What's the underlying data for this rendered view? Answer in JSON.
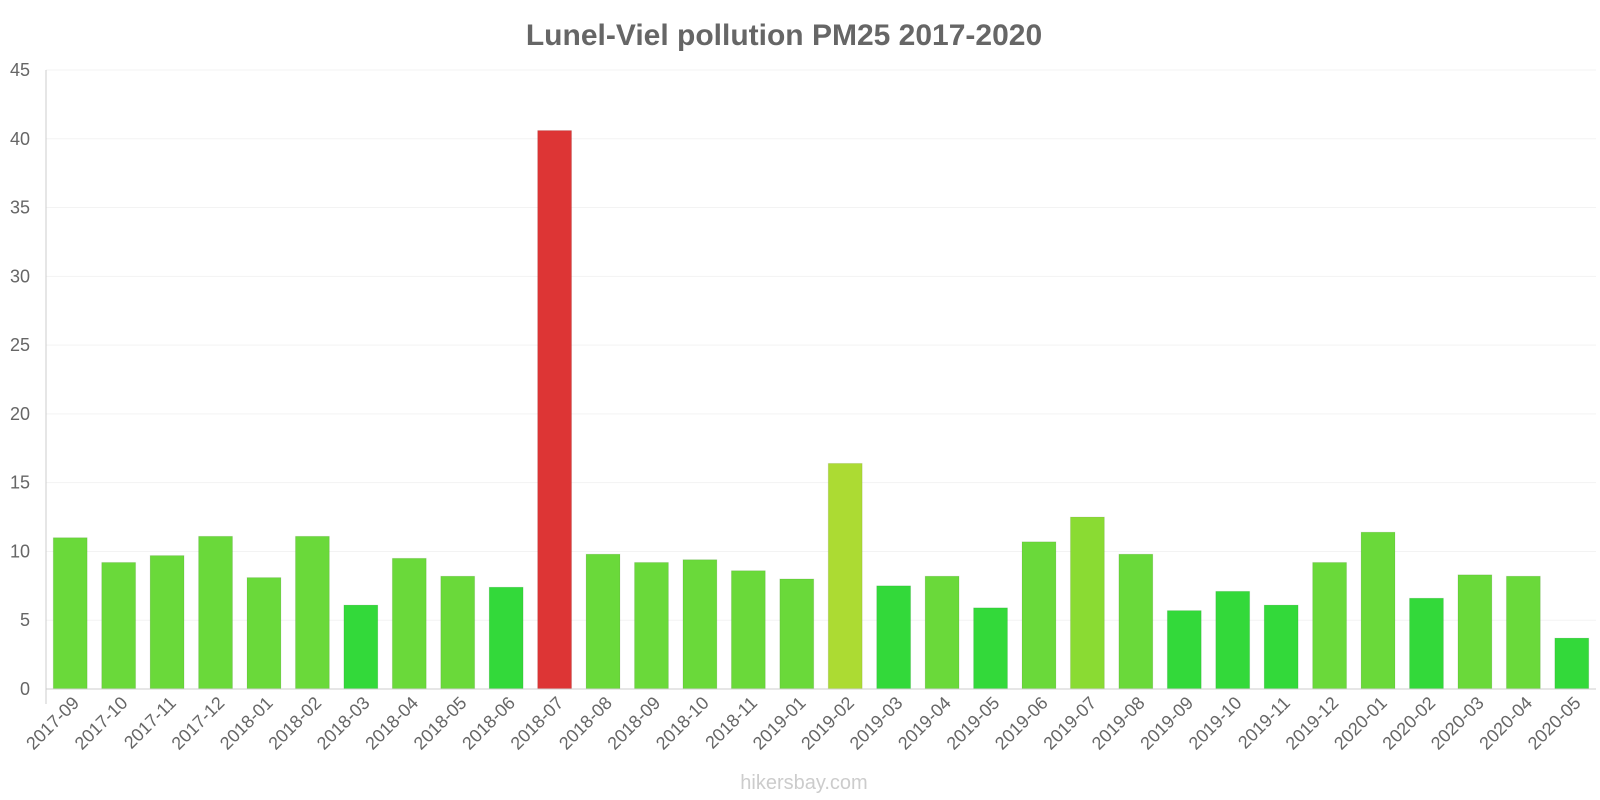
{
  "chart_data": {
    "type": "bar",
    "title": "Lunel-Viel pollution PM25 2017-2020",
    "xlabel": "",
    "ylabel": "",
    "ylim": [
      0,
      45
    ],
    "yticks": [
      0,
      5,
      10,
      15,
      20,
      25,
      30,
      35,
      40,
      45
    ],
    "grid": true,
    "legend": "none",
    "categories": [
      "2017-09",
      "2017-10",
      "2017-11",
      "2017-12",
      "2018-01",
      "2018-02",
      "2018-03",
      "2018-04",
      "2018-05",
      "2018-06",
      "2018-07",
      "2018-08",
      "2018-09",
      "2018-10",
      "2018-11",
      "2019-01",
      "2019-02",
      "2019-03",
      "2019-04",
      "2019-05",
      "2019-06",
      "2019-07",
      "2019-08",
      "2019-09",
      "2019-10",
      "2019-11",
      "2019-12",
      "2020-01",
      "2020-02",
      "2020-03",
      "2020-04",
      "2020-05"
    ],
    "values": [
      11.0,
      9.2,
      9.7,
      11.1,
      8.1,
      11.1,
      6.1,
      9.5,
      8.2,
      7.4,
      40.6,
      9.8,
      9.2,
      9.4,
      8.6,
      8.0,
      16.4,
      7.5,
      8.2,
      5.9,
      10.7,
      12.5,
      9.8,
      5.7,
      7.1,
      6.1,
      9.2,
      11.4,
      6.6,
      8.3,
      8.2,
      3.7
    ],
    "colors": [
      "#6ad93a",
      "#6ad93a",
      "#6ad93a",
      "#6ad93a",
      "#6ad93a",
      "#6ad93a",
      "#33d93a",
      "#6ad93a",
      "#6ad93a",
      "#33d93a",
      "#dd3535",
      "#6ad93a",
      "#6ad93a",
      "#6ad93a",
      "#6ad93a",
      "#6ad93a",
      "#acdb33",
      "#33d93a",
      "#6ad93a",
      "#33d93a",
      "#6ad93a",
      "#8adb33",
      "#6ad93a",
      "#33d93a",
      "#33d93a",
      "#33d93a",
      "#6ad93a",
      "#6ad93a",
      "#33d93a",
      "#6ad93a",
      "#6ad93a",
      "#33d93a"
    ]
  },
  "watermark": "hikersbay.com"
}
